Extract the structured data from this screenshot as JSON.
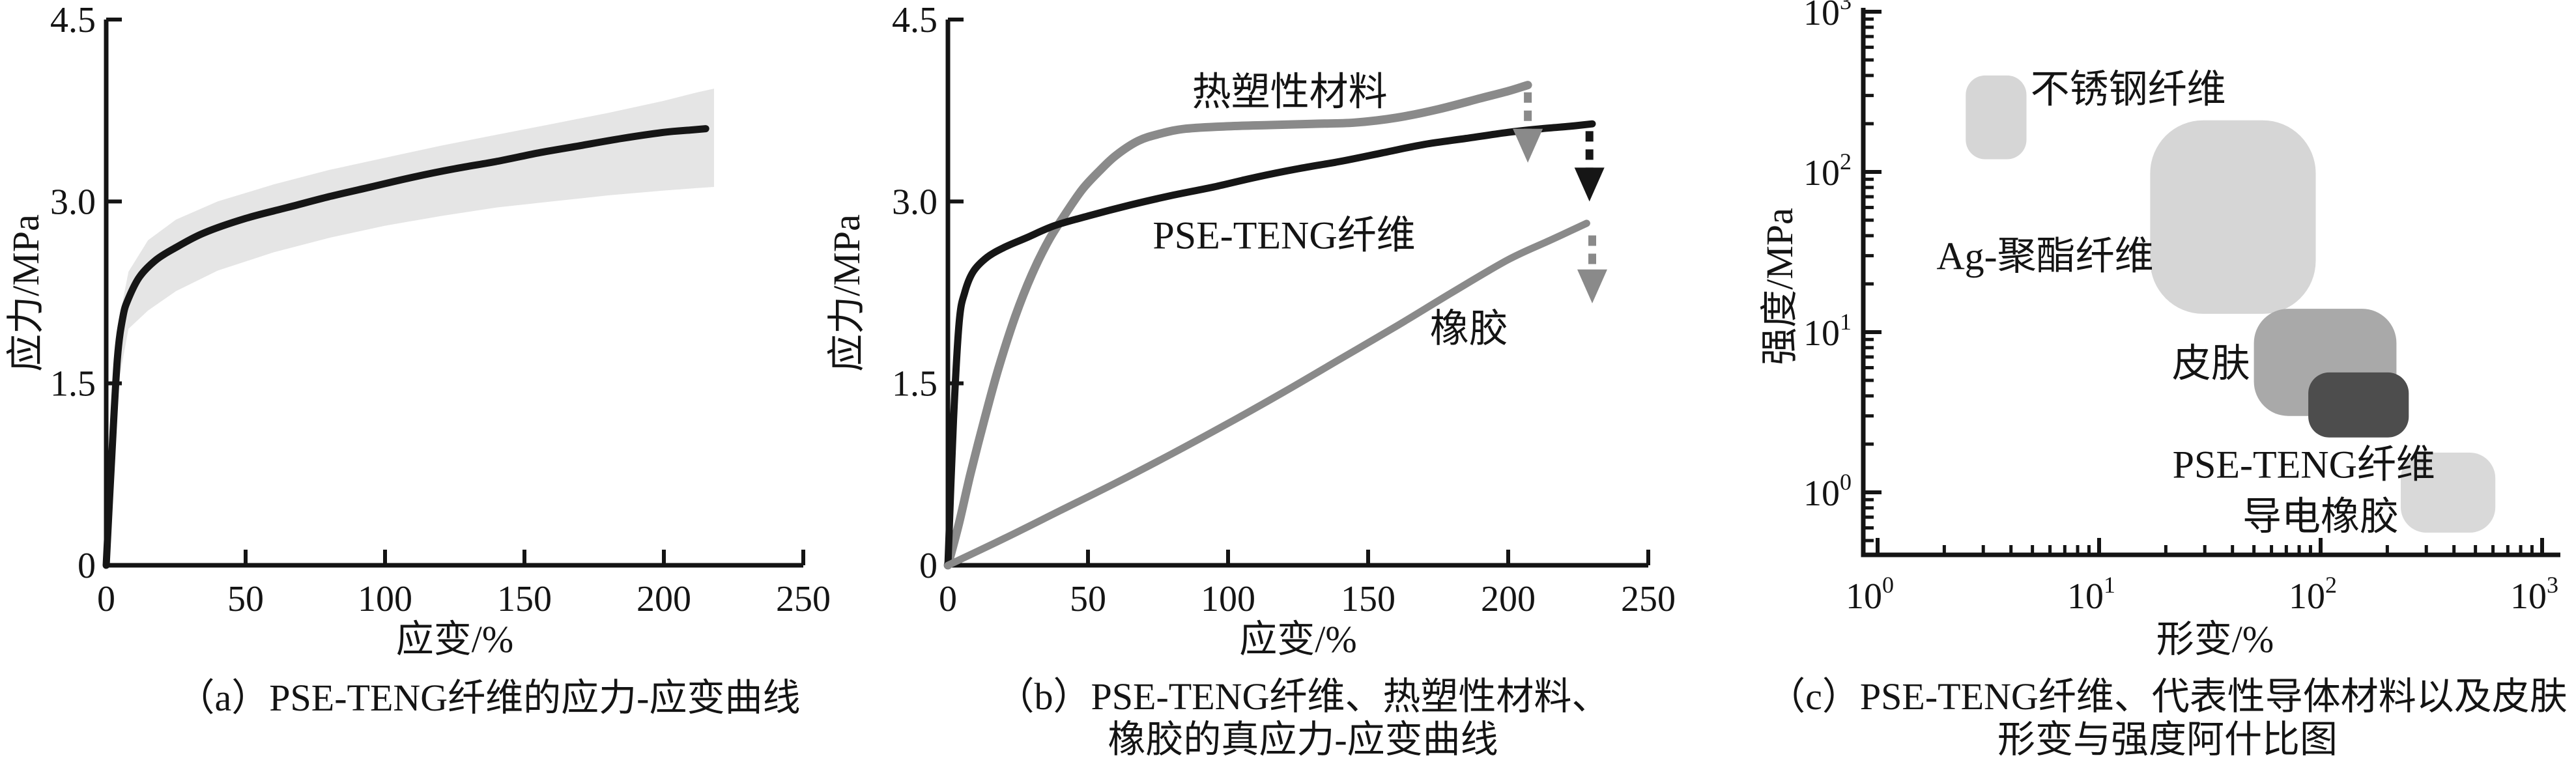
{
  "figure": {
    "background": "#ffffff",
    "colors": {
      "curve-black": "#161616",
      "curve-gray": "#8a8a8a",
      "error-band": "#e5e5e5",
      "axis": "#141414",
      "blob-light-gray": "#d6d6d6",
      "blob-medium-gray": "#a9a9a9",
      "blob-dark-gray": "#4d4d4d"
    }
  },
  "chart_data": [
    {
      "id": "a",
      "type": "line",
      "caption": "（a）PSE-TENG纤维的应力-应变曲线",
      "xlabel": "应变/%",
      "ylabel": "应力/MPa",
      "xlim": [
        0,
        250
      ],
      "ylim": [
        0,
        4.5
      ],
      "x_ticks": [
        0,
        50,
        100,
        150,
        200,
        250
      ],
      "x_tick_labels": [
        "0",
        "50",
        "100",
        "150",
        "200",
        "250"
      ],
      "y_ticks": [
        0,
        1.5,
        3.0,
        4.5
      ],
      "y_tick_labels": [
        "0",
        "1.5",
        "3.0",
        "4.5"
      ],
      "grid": false,
      "band": {
        "color": "#e5e5e5",
        "upper": [
          [
            4,
            1.95
          ],
          [
            8,
            2.42
          ],
          [
            15,
            2.68
          ],
          [
            25,
            2.85
          ],
          [
            40,
            3.0
          ],
          [
            60,
            3.14
          ],
          [
            80,
            3.26
          ],
          [
            100,
            3.36
          ],
          [
            120,
            3.46
          ],
          [
            140,
            3.55
          ],
          [
            160,
            3.64
          ],
          [
            180,
            3.73
          ],
          [
            200,
            3.83
          ],
          [
            212,
            3.9
          ],
          [
            218,
            3.93
          ]
        ],
        "lower": [
          [
            4,
            1.45
          ],
          [
            8,
            1.95
          ],
          [
            15,
            2.1
          ],
          [
            25,
            2.26
          ],
          [
            40,
            2.43
          ],
          [
            60,
            2.58
          ],
          [
            80,
            2.7
          ],
          [
            100,
            2.8
          ],
          [
            120,
            2.88
          ],
          [
            140,
            2.95
          ],
          [
            160,
            3.0
          ],
          [
            180,
            3.05
          ],
          [
            200,
            3.09
          ],
          [
            212,
            3.11
          ],
          [
            218,
            3.12
          ]
        ]
      },
      "series": [
        {
          "key": "pse-teng-fiber",
          "name": "PSE-TENG纤维",
          "color": "#161616",
          "width": 11,
          "points": [
            [
              0,
              0
            ],
            [
              2,
              0.9
            ],
            [
              4,
              1.7
            ],
            [
              6,
              2.05
            ],
            [
              8,
              2.2
            ],
            [
              12,
              2.38
            ],
            [
              18,
              2.52
            ],
            [
              25,
              2.62
            ],
            [
              35,
              2.74
            ],
            [
              50,
              2.86
            ],
            [
              65,
              2.95
            ],
            [
              80,
              3.04
            ],
            [
              95,
              3.12
            ],
            [
              110,
              3.2
            ],
            [
              125,
              3.27
            ],
            [
              140,
              3.33
            ],
            [
              155,
              3.4
            ],
            [
              170,
              3.46
            ],
            [
              185,
              3.52
            ],
            [
              200,
              3.57
            ],
            [
              210,
              3.59
            ],
            [
              215,
              3.6
            ]
          ]
        }
      ]
    },
    {
      "id": "b",
      "type": "line",
      "caption_line1": "（b）PSE-TENG纤维、热塑性材料、",
      "caption_line2": "橡胶的真应力-应变曲线",
      "xlabel": "应变/%",
      "ylabel": "应力/MPa",
      "xlim": [
        0,
        250
      ],
      "ylim": [
        0,
        4.5
      ],
      "x_ticks": [
        0,
        50,
        100,
        150,
        200,
        250
      ],
      "x_tick_labels": [
        "0",
        "50",
        "100",
        "150",
        "200",
        "250"
      ],
      "y_ticks": [
        0,
        1.5,
        3.0,
        4.5
      ],
      "y_tick_labels": [
        "0",
        "1.5",
        "3.0",
        "4.5"
      ],
      "grid": false,
      "series": [
        {
          "key": "thermoplastic",
          "name": "热塑性材料",
          "color": "#8a8a8a",
          "width": 13,
          "label_pos": [
            122,
            3.9
          ],
          "points": [
            [
              0,
              0
            ],
            [
              4,
              0.35
            ],
            [
              8,
              0.75
            ],
            [
              13,
              1.2
            ],
            [
              18,
              1.62
            ],
            [
              24,
              2.05
            ],
            [
              30,
              2.4
            ],
            [
              36,
              2.68
            ],
            [
              42,
              2.9
            ],
            [
              48,
              3.1
            ],
            [
              54,
              3.25
            ],
            [
              60,
              3.38
            ],
            [
              68,
              3.5
            ],
            [
              76,
              3.56
            ],
            [
              85,
              3.6
            ],
            [
              100,
              3.62
            ],
            [
              115,
              3.63
            ],
            [
              130,
              3.64
            ],
            [
              145,
              3.65
            ],
            [
              160,
              3.69
            ],
            [
              175,
              3.76
            ],
            [
              190,
              3.85
            ],
            [
              200,
              3.91
            ],
            [
              207,
              3.96
            ]
          ]
        },
        {
          "key": "pse-teng-fiber",
          "name": "PSE-TENG纤维",
          "color": "#161616",
          "width": 11,
          "label_pos": [
            120,
            2.72
          ],
          "points": [
            [
              0,
              0
            ],
            [
              2,
              1.2
            ],
            [
              4,
              2.0
            ],
            [
              6,
              2.25
            ],
            [
              9,
              2.42
            ],
            [
              14,
              2.54
            ],
            [
              20,
              2.62
            ],
            [
              28,
              2.7
            ],
            [
              38,
              2.8
            ],
            [
              50,
              2.88
            ],
            [
              65,
              2.97
            ],
            [
              80,
              3.05
            ],
            [
              95,
              3.12
            ],
            [
              110,
              3.2
            ],
            [
              125,
              3.27
            ],
            [
              140,
              3.33
            ],
            [
              155,
              3.4
            ],
            [
              170,
              3.47
            ],
            [
              185,
              3.52
            ],
            [
              200,
              3.57
            ],
            [
              212,
              3.6
            ],
            [
              222,
              3.62
            ],
            [
              230,
              3.64
            ]
          ]
        },
        {
          "key": "rubber",
          "name": "橡胶",
          "color": "#8a8a8a",
          "width": 11,
          "label_pos": [
            186,
            1.95
          ],
          "points": [
            [
              0,
              0
            ],
            [
              20,
              0.22
            ],
            [
              40,
              0.45
            ],
            [
              60,
              0.68
            ],
            [
              80,
              0.92
            ],
            [
              100,
              1.17
            ],
            [
              120,
              1.43
            ],
            [
              140,
              1.7
            ],
            [
              160,
              1.97
            ],
            [
              180,
              2.25
            ],
            [
              200,
              2.52
            ],
            [
              215,
              2.68
            ],
            [
              228,
              2.82
            ]
          ]
        }
      ],
      "arrows": [
        {
          "key": "thermoplastic-break-arrow",
          "x": 207,
          "from": 3.9,
          "to": 3.32,
          "color": "#8a8a8a"
        },
        {
          "key": "pse-teng-break-arrow",
          "x": 229,
          "from": 3.58,
          "to": 3.0,
          "color": "#161616"
        },
        {
          "key": "rubber-break-arrow",
          "x": 230,
          "from": 2.72,
          "to": 2.16,
          "color": "#8a8a8a"
        }
      ]
    },
    {
      "id": "c",
      "type": "ashby-bubble",
      "caption_line1": "（c）PSE-TENG纤维、代表性导体材料以及皮肤",
      "caption_line2": "形变与强度阿什比图",
      "xlabel": "形变/%",
      "ylabel": "强度/MPa",
      "x_scale": "log",
      "y_scale": "log",
      "xlim": [
        1,
        1000
      ],
      "ylim": [
        0.45,
        1100
      ],
      "x_ticks": [
        1,
        10,
        100,
        1000
      ],
      "x_tick_exponents": [
        "0",
        "1",
        "2",
        "3"
      ],
      "y_ticks": [
        1,
        10,
        100,
        1000
      ],
      "y_tick_exponents": [
        "0",
        "1",
        "2",
        "3"
      ],
      "tick_base": "10",
      "grid": false,
      "blobs": [
        {
          "key": "stainless-steel-fiber",
          "name": "不锈钢纤维",
          "x": [
            2.5,
            4.7
          ],
          "y": [
            120,
            400
          ],
          "color": "#d6d6d6",
          "label_pos": [
            4.9,
            330
          ],
          "label_anchor": "start"
        },
        {
          "key": "ag-polyester-fiber",
          "name": "Ag-聚酯纤维",
          "x": [
            17,
            95
          ],
          "y": [
            13,
            210
          ],
          "color": "#d6d6d6",
          "label_pos": [
            5.7,
            30
          ],
          "label_anchor": "middle"
        },
        {
          "key": "skin",
          "name": "皮肤",
          "x": [
            50,
            220
          ],
          "y": [
            3,
            14
          ],
          "color": "#a9a9a9",
          "label_pos": [
            32,
            6.4
          ],
          "label_anchor": "middle"
        },
        {
          "key": "pse-teng-fiber",
          "name": "PSE-TENG纤维",
          "x": [
            88,
            250
          ],
          "y": [
            2.2,
            5.6
          ],
          "color": "#4d4d4d",
          "label_pos": [
            84,
            1.5
          ],
          "label_anchor": "middle"
        },
        {
          "key": "conductive-rubber",
          "name": "导电橡胶",
          "x": [
            230,
            615
          ],
          "y": [
            0.56,
            1.77
          ],
          "color": "#d9d9d9",
          "label_pos": [
            100,
            0.71
          ],
          "label_anchor": "middle"
        }
      ]
    }
  ]
}
